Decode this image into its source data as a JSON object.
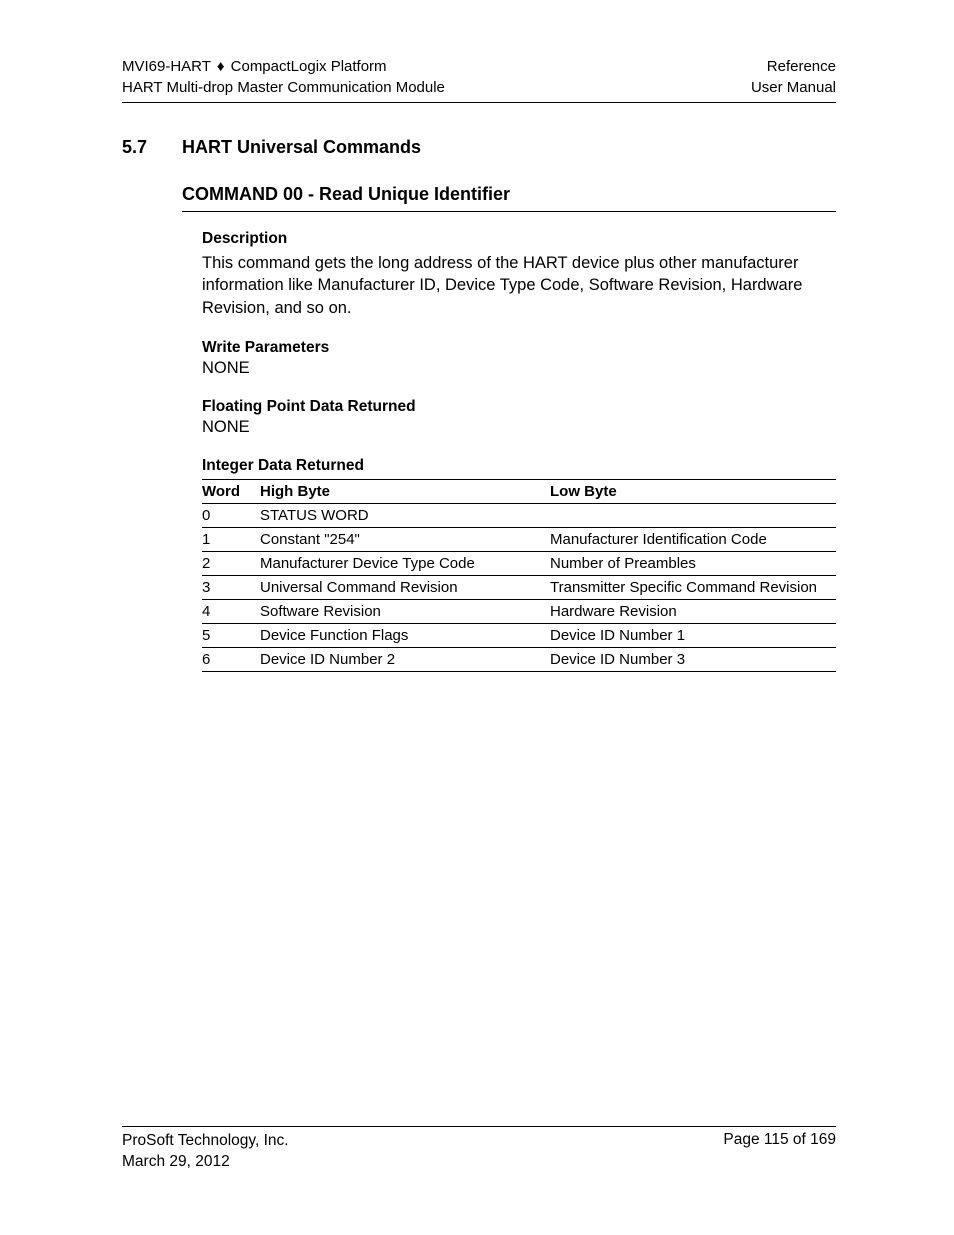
{
  "header": {
    "left_line1_a": "MVI69-HART",
    "left_line1_sep": "♦",
    "left_line1_b": "CompactLogix Platform",
    "left_line2": "HART Multi-drop Master Communication Module",
    "right_line1": "Reference",
    "right_line2": "User Manual"
  },
  "section": {
    "number": "5.7",
    "title": "HART Universal Commands"
  },
  "command": {
    "title": "COMMAND 00 - Read Unique Identifier",
    "description_head": "Description",
    "description_body": "This command gets the long address of the HART device plus other manufacturer information like Manufacturer ID, Device Type Code, Software Revision, Hardware Revision, and so on.",
    "write_params_head": "Write Parameters",
    "write_params_val": "NONE",
    "float_head": "Floating Point Data Returned",
    "float_val": "NONE",
    "int_head": "Integer Data Returned"
  },
  "table": {
    "col_word": "Word",
    "col_high": "High Byte",
    "col_low": "Low Byte",
    "rows": [
      {
        "word": "0",
        "high": "STATUS WORD",
        "low": ""
      },
      {
        "word": "1",
        "high": "Constant \"254\"",
        "low": "Manufacturer Identification Code"
      },
      {
        "word": "2",
        "high": "Manufacturer Device Type Code",
        "low": "Number of Preambles"
      },
      {
        "word": "3",
        "high": "Universal Command Revision",
        "low": "Transmitter Specific Command Revision"
      },
      {
        "word": "4",
        "high": "Software Revision",
        "low": "Hardware Revision"
      },
      {
        "word": "5",
        "high": "Device Function Flags",
        "low": "Device ID Number 1"
      },
      {
        "word": "6",
        "high": "Device ID Number 2",
        "low": "Device ID Number 3"
      }
    ]
  },
  "footer": {
    "company": "ProSoft Technology, Inc.",
    "date": "March 29, 2012",
    "page": "Page 115 of 169"
  }
}
